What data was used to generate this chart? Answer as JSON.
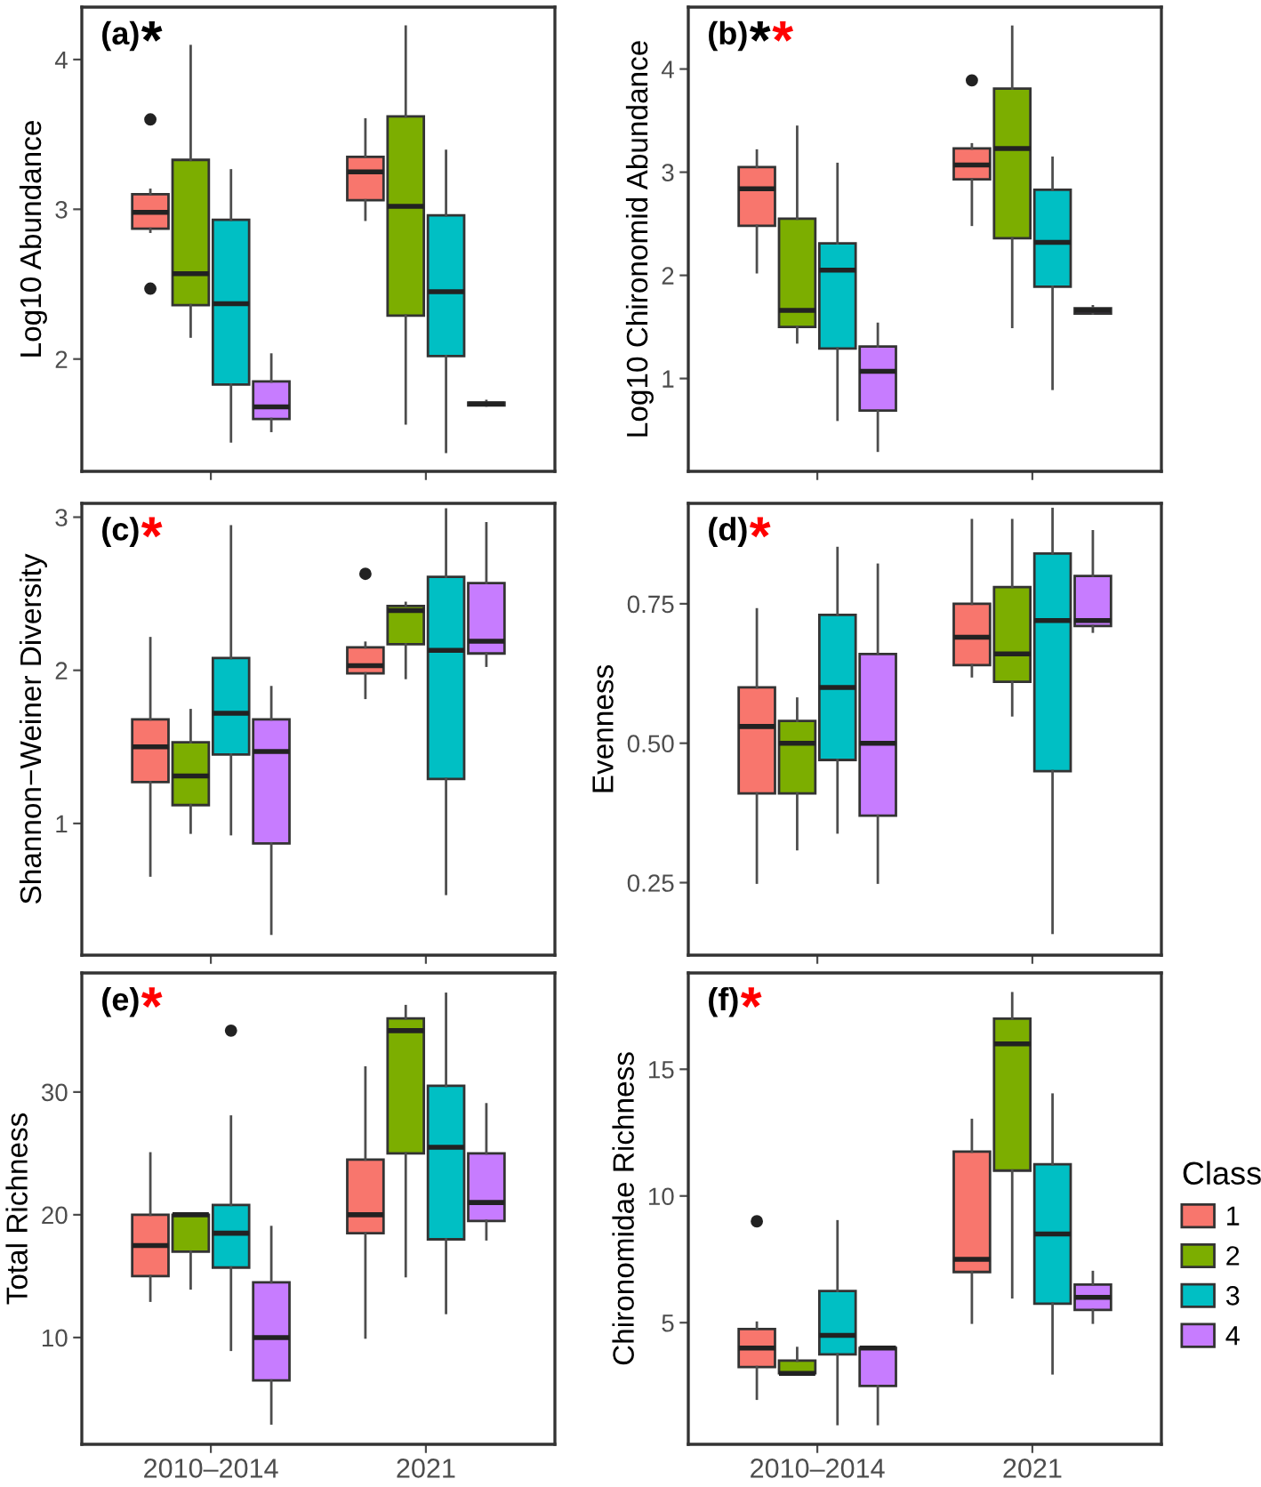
{
  "chart_data": [
    {
      "type": "box",
      "title": "(a)",
      "annotations": [
        "*"
      ],
      "ylabel": "Log10 Abundance",
      "categories": [
        null,
        null
      ],
      "ylim": [
        1.25,
        4.35
      ],
      "yticks": [
        2,
        3,
        4
      ],
      "tick_labels": "y",
      "grid": false,
      "series": [
        {
          "color": "#f8766d",
          "boxes": [
            {
              "low": 2.85,
              "q1": 2.87,
              "median": 2.98,
              "q3": 3.1,
              "high": 3.13,
              "outliers": [
                3.6,
                2.47
              ]
            },
            {
              "low": 2.93,
              "q1": 3.06,
              "median": 3.25,
              "q3": 3.35,
              "high": 3.6
            }
          ]
        },
        {
          "color": "#7cae00",
          "boxes": [
            {
              "low": 2.15,
              "q1": 2.36,
              "median": 2.57,
              "q3": 3.33,
              "high": 4.09
            },
            {
              "low": 1.57,
              "q1": 2.29,
              "median": 3.02,
              "q3": 3.62,
              "high": 4.22
            }
          ]
        },
        {
          "color": "#00bfc4",
          "boxes": [
            {
              "low": 1.45,
              "q1": 1.83,
              "median": 2.37,
              "q3": 2.93,
              "high": 3.26
            },
            {
              "low": 1.38,
              "q1": 2.02,
              "median": 2.45,
              "q3": 2.96,
              "high": 3.39
            }
          ]
        },
        {
          "color": "#c77cff",
          "boxes": [
            {
              "low": 1.52,
              "q1": 1.6,
              "median": 1.68,
              "q3": 1.85,
              "high": 2.03
            },
            {
              "low": 1.69,
              "q1": 1.69,
              "median": 1.7,
              "q3": 1.71,
              "high": 1.72
            }
          ]
        }
      ]
    },
    {
      "type": "box",
      "title": "(b)",
      "annotations": [
        "*",
        "*"
      ],
      "ylabel": "Log10 Chironomid Abundance",
      "categories": [
        null,
        null
      ],
      "ylim": [
        0.1,
        4.6
      ],
      "yticks": [
        1,
        2,
        3,
        4
      ],
      "tick_labels": "y",
      "grid": false,
      "series": [
        {
          "color": "#f8766d",
          "boxes": [
            {
              "low": 2.03,
              "q1": 2.48,
              "median": 2.84,
              "q3": 3.05,
              "high": 3.21
            },
            {
              "low": 2.49,
              "q1": 2.93,
              "median": 3.07,
              "q3": 3.23,
              "high": 3.27,
              "outliers": [
                3.89
              ]
            }
          ]
        },
        {
          "color": "#7cae00",
          "boxes": [
            {
              "low": 1.35,
              "q1": 1.5,
              "median": 1.66,
              "q3": 2.55,
              "high": 3.44
            },
            {
              "low": 1.5,
              "q1": 2.36,
              "median": 3.23,
              "q3": 3.81,
              "high": 4.41
            }
          ]
        },
        {
          "color": "#00bfc4",
          "boxes": [
            {
              "low": 0.6,
              "q1": 1.29,
              "median": 2.05,
              "q3": 2.31,
              "high": 3.08
            },
            {
              "low": 0.9,
              "q1": 1.89,
              "median": 2.32,
              "q3": 2.83,
              "high": 3.14
            }
          ]
        },
        {
          "color": "#c77cff",
          "boxes": [
            {
              "low": 0.3,
              "q1": 0.69,
              "median": 1.07,
              "q3": 1.31,
              "high": 1.53
            },
            {
              "low": 1.63,
              "q1": 1.63,
              "median": 1.66,
              "q3": 1.68,
              "high": 1.7
            }
          ]
        }
      ]
    },
    {
      "type": "box",
      "title": "(c)",
      "annotations": [
        "*"
      ],
      "ylabel": "Shannon−Weiner Diversity",
      "categories": [
        null,
        null
      ],
      "ylim": [
        0.14,
        3.09
      ],
      "yticks": [
        1,
        2,
        3
      ],
      "tick_labels": "y",
      "grid": false,
      "series": [
        {
          "color": "#f8766d",
          "boxes": [
            {
              "low": 0.66,
              "q1": 1.27,
              "median": 1.5,
              "q3": 1.68,
              "high": 2.21
            },
            {
              "low": 1.82,
              "q1": 1.98,
              "median": 2.03,
              "q3": 2.15,
              "high": 2.18,
              "outliers": [
                2.63
              ]
            }
          ]
        },
        {
          "color": "#7cae00",
          "boxes": [
            {
              "low": 0.94,
              "q1": 1.12,
              "median": 1.31,
              "q3": 1.53,
              "high": 1.74
            },
            {
              "low": 1.95,
              "q1": 2.17,
              "median": 2.39,
              "q3": 2.42,
              "high": 2.44
            }
          ]
        },
        {
          "color": "#00bfc4",
          "boxes": [
            {
              "low": 0.93,
              "q1": 1.45,
              "median": 1.72,
              "q3": 2.08,
              "high": 2.94
            },
            {
              "low": 0.54,
              "q1": 1.29,
              "median": 2.13,
              "q3": 2.61,
              "high": 3.05
            }
          ]
        },
        {
          "color": "#c77cff",
          "boxes": [
            {
              "low": 0.28,
              "q1": 0.87,
              "median": 1.47,
              "q3": 1.68,
              "high": 1.89
            },
            {
              "low": 2.03,
              "q1": 2.11,
              "median": 2.19,
              "q3": 2.57,
              "high": 2.96
            }
          ]
        }
      ]
    },
    {
      "type": "box",
      "title": "(d)",
      "annotations": [
        "*"
      ],
      "ylabel": "Evenness",
      "categories": [
        null,
        null
      ],
      "ylim": [
        0.12,
        0.93
      ],
      "yticks": [
        {
          "value": 0.25,
          "label": "0.25"
        },
        {
          "value": 0.5,
          "label": "0.50"
        },
        {
          "value": 0.75,
          "label": "0.75"
        }
      ],
      "tick_labels": "y",
      "grid": false,
      "series": [
        {
          "color": "#f8766d",
          "boxes": [
            {
              "low": 0.25,
              "q1": 0.41,
              "median": 0.53,
              "q3": 0.6,
              "high": 0.74
            },
            {
              "low": 0.62,
              "q1": 0.64,
              "median": 0.69,
              "q3": 0.75,
              "high": 0.9
            }
          ]
        },
        {
          "color": "#7cae00",
          "boxes": [
            {
              "low": 0.31,
              "q1": 0.41,
              "median": 0.5,
              "q3": 0.54,
              "high": 0.58
            },
            {
              "low": 0.55,
              "q1": 0.61,
              "median": 0.66,
              "q3": 0.78,
              "high": 0.9
            }
          ]
        },
        {
          "color": "#00bfc4",
          "boxes": [
            {
              "low": 0.34,
              "q1": 0.47,
              "median": 0.6,
              "q3": 0.73,
              "high": 0.85
            },
            {
              "low": 0.16,
              "q1": 0.45,
              "median": 0.72,
              "q3": 0.84,
              "high": 0.92
            }
          ]
        },
        {
          "color": "#c77cff",
          "boxes": [
            {
              "low": 0.25,
              "q1": 0.37,
              "median": 0.5,
              "q3": 0.66,
              "high": 0.82
            },
            {
              "low": 0.7,
              "q1": 0.71,
              "median": 0.72,
              "q3": 0.8,
              "high": 0.88
            }
          ]
        }
      ]
    },
    {
      "type": "box",
      "title": "(e)",
      "annotations": [
        "*"
      ],
      "ylabel": "Total Richness",
      "categories": [
        "2010–2014",
        "2021"
      ],
      "ylim": [
        1.3,
        39.7
      ],
      "yticks": [
        10,
        20,
        30
      ],
      "grid": false,
      "series": [
        {
          "color": "#f8766d",
          "boxes": [
            {
              "low": 13,
              "q1": 15,
              "median": 17.5,
              "q3": 20,
              "high": 25
            },
            {
              "low": 10,
              "q1": 18.5,
              "median": 20,
              "q3": 24.5,
              "high": 32
            }
          ]
        },
        {
          "color": "#7cae00",
          "boxes": [
            {
              "low": 14,
              "q1": 17,
              "median": 20,
              "q3": 20,
              "high": 20
            },
            {
              "low": 15,
              "q1": 25,
              "median": 35,
              "q3": 36,
              "high": 37
            }
          ]
        },
        {
          "color": "#00bfc4",
          "boxes": [
            {
              "low": 9,
              "q1": 15.7,
              "median": 18.5,
              "q3": 20.8,
              "high": 28,
              "outliers": [
                35
              ]
            },
            {
              "low": 12,
              "q1": 18,
              "median": 25.5,
              "q3": 30.5,
              "high": 38
            }
          ]
        },
        {
          "color": "#c77cff",
          "boxes": [
            {
              "low": 3,
              "q1": 6.5,
              "median": 10,
              "q3": 14.5,
              "high": 19
            },
            {
              "low": 18,
              "q1": 19.5,
              "median": 21,
              "q3": 25,
              "high": 29
            }
          ]
        }
      ]
    },
    {
      "type": "box",
      "title": "(f)",
      "annotations": [
        "*"
      ],
      "ylabel": "Chironomidae Richness",
      "categories": [
        "2010–2014",
        "2021"
      ],
      "ylim": [
        0.2,
        18.8
      ],
      "yticks": [
        5,
        10,
        15
      ],
      "grid": false,
      "legend": "right",
      "legend_title": "Class",
      "series": [
        {
          "name": "1",
          "color": "#f8766d",
          "boxes": [
            {
              "low": 2,
              "q1": 3.25,
              "median": 4,
              "q3": 4.75,
              "high": 5,
              "outliers": [
                9
              ]
            },
            {
              "low": 5,
              "q1": 7,
              "median": 7.5,
              "q3": 11.75,
              "high": 13
            }
          ]
        },
        {
          "name": "2",
          "color": "#7cae00",
          "boxes": [
            {
              "low": 3,
              "q1": 3,
              "median": 3,
              "q3": 3.5,
              "high": 4
            },
            {
              "low": 6,
              "q1": 11,
              "median": 16,
              "q3": 17,
              "high": 18
            }
          ]
        },
        {
          "name": "3",
          "color": "#00bfc4",
          "boxes": [
            {
              "low": 1,
              "q1": 3.75,
              "median": 4.5,
              "q3": 6.25,
              "high": 9
            },
            {
              "low": 3,
              "q1": 5.75,
              "median": 8.5,
              "q3": 11.25,
              "high": 14
            }
          ]
        },
        {
          "name": "4",
          "color": "#c77cff",
          "boxes": [
            {
              "low": 1,
              "q1": 2.5,
              "median": 4,
              "q3": 4,
              "high": 4
            },
            {
              "low": 5,
              "q1": 5.5,
              "median": 6,
              "q3": 6.5,
              "high": 7
            }
          ]
        }
      ]
    }
  ]
}
